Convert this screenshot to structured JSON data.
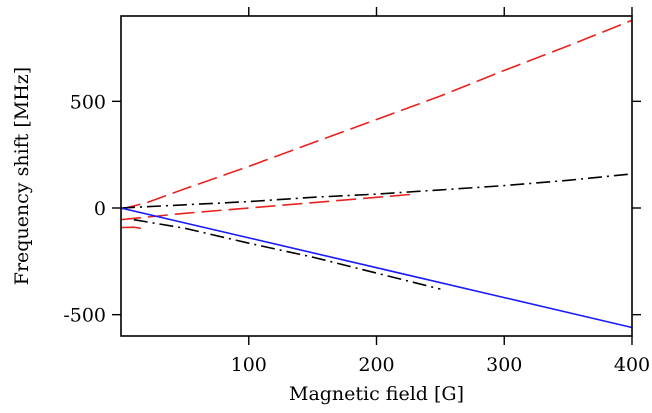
{
  "chart_data": {
    "type": "line",
    "title": "",
    "xlabel": "Magnetic field [G]",
    "ylabel": "Frequency shift [MHz]",
    "xlim": [
      0,
      400
    ],
    "ylim": [
      -600,
      900
    ],
    "xticks": [
      100,
      200,
      300,
      400
    ],
    "xtick_labels": [
      "100",
      "200",
      "300",
      "400"
    ],
    "yticks": [
      -500,
      0,
      500
    ],
    "ytick_labels": [
      "-500",
      "0",
      "500"
    ],
    "grid": false,
    "legend": "none",
    "series": [
      {
        "color": "#e8231f",
        "dash": "long-dash",
        "x": [
          0,
          20,
          50,
          100,
          150,
          200,
          250,
          300,
          350,
          400
        ],
        "y": [
          -5,
          25,
          90,
          195,
          305,
          415,
          525,
          645,
          760,
          880
        ]
      },
      {
        "color": "#e8231f",
        "dash": "long-dash",
        "x": [
          0,
          25,
          50,
          100,
          150,
          200,
          230
        ],
        "y": [
          -55,
          -40,
          -25,
          0,
          25,
          50,
          65
        ]
      },
      {
        "color": "#e8231f",
        "dash": "long-dash",
        "x": [
          0,
          10,
          20
        ],
        "y": [
          -92,
          -90,
          -100
        ]
      },
      {
        "color": "#000000",
        "dash": "dash-dot",
        "x": [
          0,
          50,
          100,
          150,
          200,
          250,
          300,
          350,
          400
        ],
        "y": [
          0,
          15,
          30,
          50,
          65,
          85,
          105,
          130,
          160
        ]
      },
      {
        "color": "#000000",
        "dash": "dash-dot",
        "x": [
          10,
          50,
          100,
          150,
          200,
          250
        ],
        "y": [
          -55,
          -95,
          -165,
          -230,
          -305,
          -380
        ]
      },
      {
        "color": "#1a1aff",
        "dash": "solid",
        "x": [
          0,
          100,
          200,
          300,
          400
        ],
        "y": [
          0,
          -140,
          -280,
          -420,
          -560
        ]
      }
    ]
  }
}
